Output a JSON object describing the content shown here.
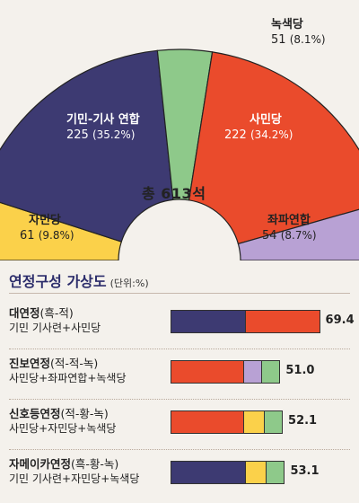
{
  "chart_data": [
    {
      "type": "pie",
      "variant": "semicircle",
      "center_label": "총 613석",
      "slices": [
        {
          "name": "자민당",
          "value": 61,
          "pct": "9.8%",
          "color": "#fbd14a"
        },
        {
          "name": "기민-기사 연합",
          "value": 225,
          "pct": "35.2%",
          "color": "#3d3a72"
        },
        {
          "name": "녹색당",
          "value": 51,
          "pct": "8.1%",
          "color": "#8ec98a"
        },
        {
          "name": "사민당",
          "value": 222,
          "pct": "34.2%",
          "color": "#ea4b2c"
        },
        {
          "name": "좌파연합",
          "value": 54,
          "pct": "8.7%",
          "color": "#b8a1d4"
        }
      ]
    },
    {
      "type": "bar",
      "orientation": "horizontal-stacked",
      "title": "연정구성 가상도",
      "unit": "(단위:%)",
      "rows": [
        {
          "name": "대연정",
          "colors": "(흑-적)",
          "parties": "기민 기사련+사민당",
          "value": 69.4,
          "segments": [
            {
              "party": "기민-기사 연합",
              "value": 35.2
            },
            {
              "party": "사민당",
              "value": 34.2
            }
          ]
        },
        {
          "name": "진보연정",
          "colors": "(적-적-녹)",
          "parties": "사민당+좌파연합+녹색당",
          "value": 51.0,
          "value_label": "51.0",
          "segments": [
            {
              "party": "사민당",
              "value": 34.2
            },
            {
              "party": "좌파연합",
              "value": 8.7
            },
            {
              "party": "녹색당",
              "value": 8.1
            }
          ]
        },
        {
          "name": "신호등연정",
          "colors": "(적-황-녹)",
          "parties": "사민당+자민당+녹색당",
          "value": 52.1,
          "segments": [
            {
              "party": "사민당",
              "value": 34.2
            },
            {
              "party": "자민당",
              "value": 9.8
            },
            {
              "party": "녹색당",
              "value": 8.1
            }
          ]
        },
        {
          "name": "자메이카연정",
          "colors": "(흑-황-녹)",
          "parties": "기민 기사련+자민당+녹색당",
          "value": 53.1,
          "segments": [
            {
              "party": "기민-기사 연합",
              "value": 35.2
            },
            {
              "party": "자민당",
              "value": 9.8
            },
            {
              "party": "녹색당",
              "value": 8.1
            }
          ]
        }
      ]
    }
  ],
  "party_colors": {
    "기민-기사 연합": "#3d3a72",
    "사민당": "#ea4b2c",
    "녹색당": "#8ec98a",
    "좌파연합": "#b8a1d4",
    "자민당": "#fbd14a"
  }
}
